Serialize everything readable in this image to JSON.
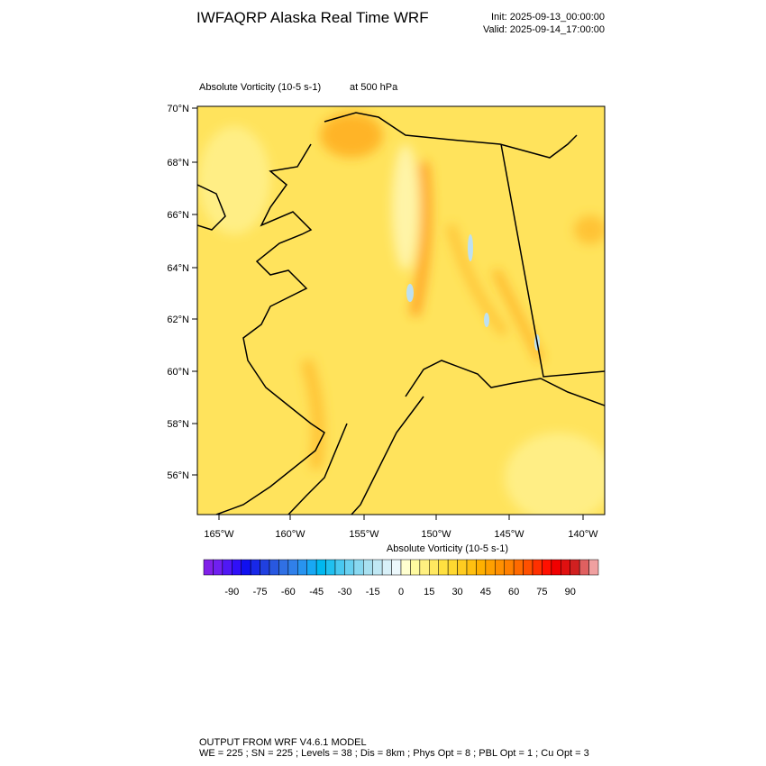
{
  "header": {
    "title": "IWFAQRP Alaska Real Time WRF",
    "init": "Init: 2025-09-13_00:00:00",
    "valid": "Valid: 2025-09-14_17:00:00"
  },
  "map": {
    "field_label": "Absolute Vorticity   (10-5 s-1)",
    "level_label": "at   500 hPa",
    "lat_labels": [
      "70°N",
      "68°N",
      "66°N",
      "64°N",
      "62°N",
      "60°N",
      "58°N",
      "56°N"
    ],
    "lon_labels": [
      "165°W",
      "160°W",
      "155°W",
      "150°W",
      "145°W",
      "140°W"
    ]
  },
  "colorbar": {
    "title": "Absolute Vorticity  (10-5 s-1)",
    "ticks": [
      -90,
      -75,
      -60,
      -45,
      -30,
      -15,
      0,
      15,
      30,
      45,
      60,
      75,
      90
    ],
    "colors": [
      "#8020e8",
      "#7020f0",
      "#5018f4",
      "#3010f8",
      "#1010f0",
      "#1828e8",
      "#2040e0",
      "#2858e0",
      "#3070e4",
      "#3080ea",
      "#2894f0",
      "#18a8f4",
      "#00b8f0",
      "#20c0f0",
      "#48c8f0",
      "#68d0f0",
      "#88d8f0",
      "#a8e0f0",
      "#c0e8f4",
      "#d8f0f8",
      "#ecf8fc",
      "#ffffd0",
      "#fffaa0",
      "#fff080",
      "#ffe860",
      "#ffe040",
      "#ffd830",
      "#ffcc20",
      "#ffc010",
      "#ffb000",
      "#ffa000",
      "#ff9000",
      "#ff8000",
      "#ff6a00",
      "#ff5000",
      "#ff3000",
      "#ff1000",
      "#f00000",
      "#e01010",
      "#d02020",
      "#e06060",
      "#f0a0a0"
    ]
  },
  "footer": {
    "line1": "OUTPUT FROM WRF V4.6.1 MODEL",
    "line2": "WE = 225 ; SN = 225 ; Levels = 38 ; Dis = 8km ; Phys Opt = 8 ; PBL Opt = 1 ; Cu Opt = 3"
  }
}
